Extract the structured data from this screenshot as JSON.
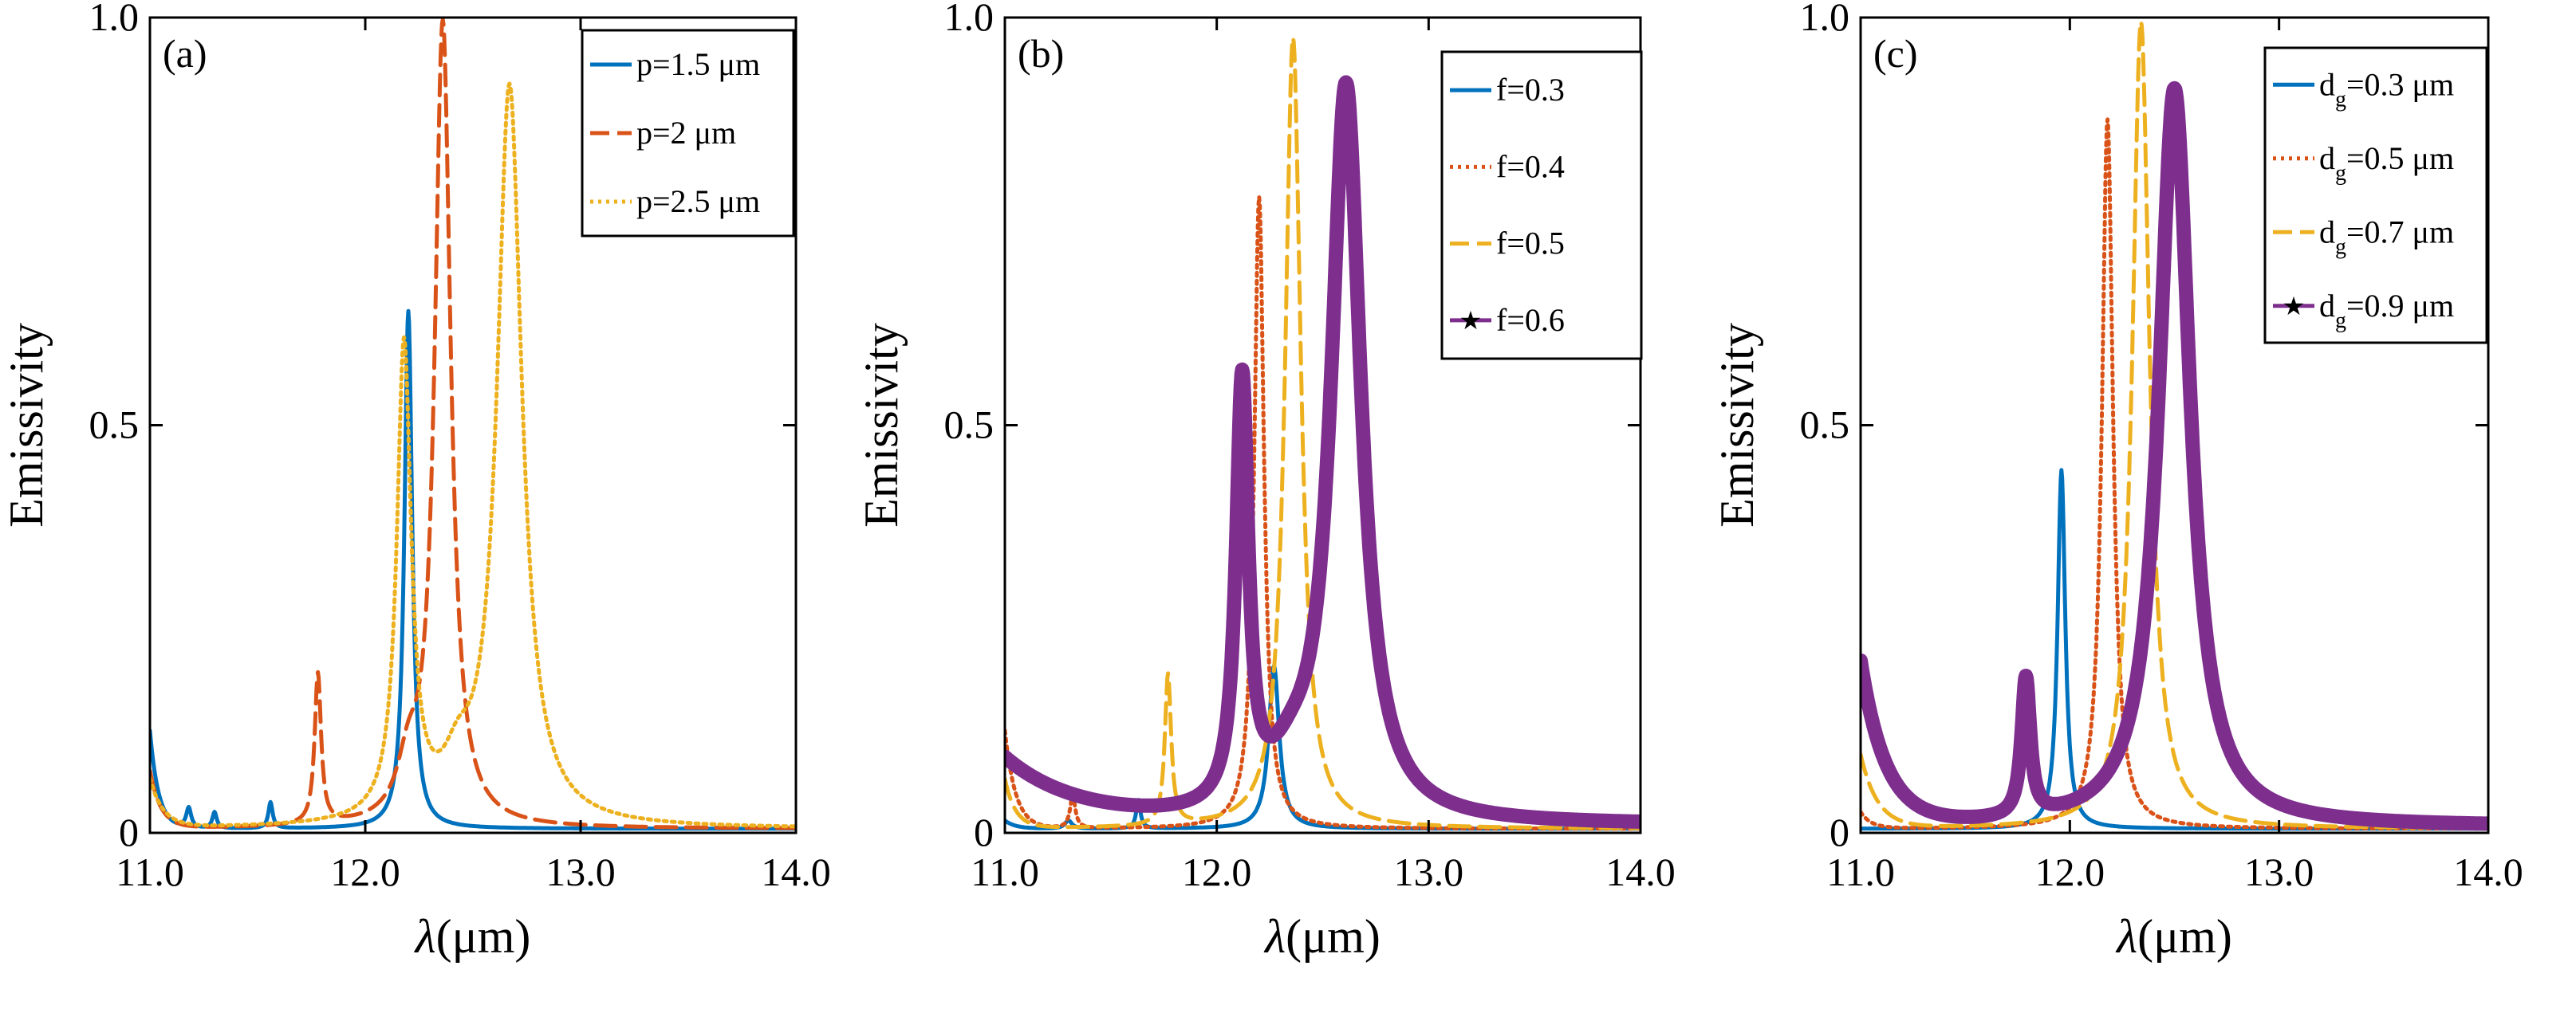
{
  "colors": {
    "blue": "#0072BD",
    "orange": "#D95319",
    "yellow": "#EDB120",
    "purple": "#7E2F8E",
    "axis": "#000000"
  },
  "chart_data": [
    {
      "type": "line",
      "panel_label": "(a)",
      "xlabel_symbol": "λ",
      "xlabel_unit": "(μm)",
      "ylabel": "Emissivity",
      "xlim": [
        11.0,
        14.0
      ],
      "ylim": [
        0,
        1.0
      ],
      "x_ticks": [
        "11.0",
        "12.0",
        "13.0",
        "14.0"
      ],
      "y_ticks": [
        "0",
        "0.5",
        "1.0"
      ],
      "legend_position": "top-right",
      "series": [
        {
          "name": "p=1.5 μm",
          "style": "solid",
          "color": "#0072BD",
          "peaks": [
            {
              "x0": 12.2,
              "amp": 0.635,
              "w": 0.022
            },
            {
              "x0": 11.56,
              "amp": 0.032,
              "w": 0.012
            },
            {
              "x0": 11.18,
              "amp": 0.025,
              "w": 0.014
            },
            {
              "x0": 11.3,
              "amp": 0.02,
              "w": 0.012
            }
          ],
          "edge": {
            "amp": 0.12,
            "tau": 0.04,
            "base": 0.005
          }
        },
        {
          "name": "p=2 μm",
          "style": "dashed",
          "color": "#D95319",
          "peaks": [
            {
              "x0": 12.36,
              "amp": 0.985,
              "w": 0.045
            },
            {
              "x0": 11.78,
              "amp": 0.185,
              "w": 0.018
            },
            {
              "x0": 12.2,
              "amp": 0.06,
              "w": 0.06
            }
          ],
          "edge": {
            "amp": 0.07,
            "tau": 0.05,
            "base": 0.005
          }
        },
        {
          "name": "p=2.5 μm",
          "style": "dotted",
          "color": "#EDB120",
          "peaks": [
            {
              "x0": 12.67,
              "amp": 0.905,
              "w": 0.07
            },
            {
              "x0": 12.18,
              "amp": 0.58,
              "w": 0.04
            },
            {
              "x0": 12.43,
              "amp": 0.05,
              "w": 0.08
            }
          ],
          "edge": {
            "amp": 0.06,
            "tau": 0.06,
            "base": 0.005
          }
        }
      ]
    },
    {
      "type": "line",
      "panel_label": "(b)",
      "xlabel_symbol": "λ",
      "xlabel_unit": "(μm)",
      "ylabel": "Emissivity",
      "xlim": [
        11.0,
        14.0
      ],
      "ylim": [
        0,
        1.0
      ],
      "x_ticks": [
        "11.0",
        "12.0",
        "13.0",
        "14.0"
      ],
      "y_ticks": [
        "0",
        "0.5",
        "1.0"
      ],
      "legend_position": "top-right",
      "series": [
        {
          "name": "f=0.3",
          "style": "solid",
          "color": "#0072BD",
          "peaks": [
            {
              "x0": 12.27,
              "amp": 0.2,
              "w": 0.03
            },
            {
              "x0": 11.63,
              "amp": 0.035,
              "w": 0.012
            },
            {
              "x0": 11.3,
              "amp": 0.01,
              "w": 0.02
            }
          ],
          "edge": {
            "amp": 0.01,
            "tau": 0.05,
            "base": 0.005
          }
        },
        {
          "name": "f=0.4",
          "style": "dotted",
          "color": "#D95319",
          "peaks": [
            {
              "x0": 12.2,
              "amp": 0.775,
              "w": 0.028
            },
            {
              "x0": 11.32,
              "amp": 0.04,
              "w": 0.015
            }
          ],
          "edge": {
            "amp": 0.12,
            "tau": 0.05,
            "base": 0.005
          }
        },
        {
          "name": "f=0.5",
          "style": "dashed",
          "color": "#EDB120",
          "peaks": [
            {
              "x0": 12.36,
              "amp": 0.97,
              "w": 0.045
            },
            {
              "x0": 11.77,
              "amp": 0.185,
              "w": 0.018
            }
          ],
          "edge": {
            "amp": 0.06,
            "tau": 0.05,
            "base": 0.005
          }
        },
        {
          "name": "f=0.6",
          "style": "star-thick",
          "color": "#7E2F8E",
          "peaks": [
            {
              "x0": 12.61,
              "amp": 0.9,
              "w": 0.085
            },
            {
              "x0": 12.12,
              "amp": 0.52,
              "w": 0.035
            },
            {
              "x0": 12.35,
              "amp": 0.04,
              "w": 0.12
            }
          ],
          "edge": {
            "amp": 0.08,
            "tau": 0.35,
            "base": 0.01
          }
        }
      ]
    },
    {
      "type": "line",
      "panel_label": "(c)",
      "xlabel_symbol": "λ",
      "xlabel_unit": "(μm)",
      "ylabel": "Emissivity",
      "xlim": [
        11.0,
        14.0
      ],
      "ylim": [
        0,
        1.0
      ],
      "x_ticks": [
        "11.0",
        "12.0",
        "13.0",
        "14.0"
      ],
      "y_ticks": [
        "0",
        "0.5",
        "1.0"
      ],
      "legend_position": "top-right",
      "series": [
        {
          "name": "dg=0.3 μm",
          "label_main": "d",
          "label_sub": "g",
          "label_rest": "=0.3 μm",
          "style": "solid",
          "color": "#0072BD",
          "peaks": [
            {
              "x0": 11.96,
              "amp": 0.44,
              "w": 0.022
            }
          ],
          "edge": {
            "amp": 0.0,
            "tau": 0.05,
            "base": 0.005
          }
        },
        {
          "name": "dg=0.5 μm",
          "label_main": "d",
          "label_sub": "g",
          "label_rest": "=0.5 μm",
          "style": "dotted",
          "color": "#D95319",
          "peaks": [
            {
              "x0": 12.18,
              "amp": 0.87,
              "w": 0.032
            }
          ],
          "edge": {
            "amp": 0.02,
            "tau": 0.05,
            "base": 0.005
          }
        },
        {
          "name": "dg=0.7 μm",
          "label_main": "d",
          "label_sub": "g",
          "label_rest": "=0.7 μm",
          "style": "dashed",
          "color": "#EDB120",
          "peaks": [
            {
              "x0": 12.34,
              "amp": 0.99,
              "w": 0.05
            }
          ],
          "edge": {
            "amp": 0.09,
            "tau": 0.08,
            "base": 0.005
          }
        },
        {
          "name": "dg=0.9 μm",
          "label_main": "d",
          "label_sub": "g",
          "label_rest": "=0.9 μm",
          "style": "star-thick",
          "color": "#7E2F8E",
          "peaks": [
            {
              "x0": 12.5,
              "amp": 0.905,
              "w": 0.09
            },
            {
              "x0": 11.79,
              "amp": 0.17,
              "w": 0.025
            }
          ],
          "edge": {
            "amp": 0.2,
            "tau": 0.12,
            "base": 0.008
          }
        }
      ]
    }
  ]
}
